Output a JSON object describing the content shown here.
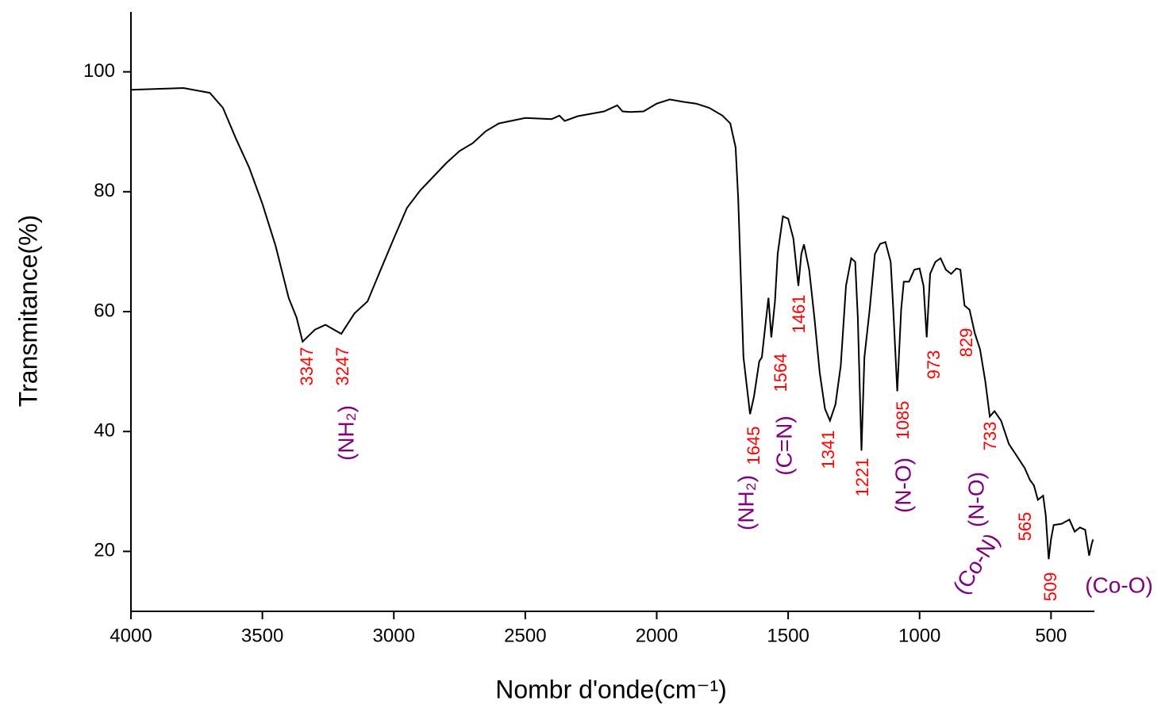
{
  "chart_data": {
    "type": "line",
    "x_label": "Nombr d'onde(cm⁻¹)",
    "y_label": "Transmitance(%)",
    "xlim": [
      4000,
      335
    ],
    "ylim": [
      10,
      110
    ],
    "xticks": [
      4000,
      3500,
      3000,
      2500,
      2000,
      1500,
      1000,
      500
    ],
    "yticks": [
      20,
      40,
      60,
      80,
      100
    ],
    "x": [
      4000,
      3800,
      3700,
      3650,
      3600,
      3550,
      3500,
      3450,
      3400,
      3370,
      3347,
      3300,
      3260,
      3200,
      3150,
      3100,
      3050,
      3000,
      2950,
      2900,
      2800,
      2750,
      2700,
      2650,
      2600,
      2500,
      2400,
      2370,
      2350,
      2300,
      2200,
      2150,
      2130,
      2100,
      2050,
      2000,
      1950,
      1900,
      1850,
      1800,
      1750,
      1720,
      1700,
      1690,
      1680,
      1670,
      1645,
      1630,
      1610,
      1600,
      1590,
      1575,
      1564,
      1550,
      1540,
      1520,
      1500,
      1480,
      1461,
      1450,
      1440,
      1420,
      1400,
      1380,
      1360,
      1341,
      1320,
      1300,
      1280,
      1260,
      1245,
      1235,
      1221,
      1210,
      1190,
      1170,
      1150,
      1130,
      1110,
      1100,
      1085,
      1070,
      1060,
      1040,
      1020,
      1000,
      985,
      973,
      960,
      940,
      920,
      900,
      880,
      860,
      845,
      829,
      810,
      790,
      770,
      750,
      733,
      715,
      690,
      660,
      630,
      600,
      580,
      565,
      550,
      530,
      520,
      509,
      500,
      490,
      460,
      430,
      410,
      390,
      370,
      355,
      345,
      340
    ],
    "series": [
      {
        "color": "#000000",
        "values": [
          97,
          97.3,
          96.5,
          94,
          88.8,
          84,
          78,
          71,
          62.3,
          59,
          55,
          57,
          57.8,
          56.3,
          59.7,
          61.7,
          67,
          72.2,
          77.3,
          80.2,
          84.8,
          86.8,
          88.1,
          90.1,
          91.4,
          92.3,
          92.1,
          92.7,
          91.8,
          92.6,
          93.4,
          94.4,
          93.4,
          93.3,
          93.4,
          94.7,
          95.4,
          95,
          94.7,
          94,
          92.7,
          91.4,
          87.4,
          78.8,
          65.6,
          52.4,
          42.9,
          45.8,
          51.7,
          52.4,
          56.4,
          62.3,
          55.7,
          61.7,
          69.6,
          75.9,
          75.5,
          72.2,
          64.3,
          69.6,
          71.2,
          67,
          59,
          49.8,
          43.8,
          41.8,
          44.5,
          51,
          64.3,
          68.9,
          68.3,
          59,
          36.8,
          52.4,
          60.3,
          69.6,
          71.3,
          71.6,
          68.3,
          60.3,
          46.7,
          60.3,
          65,
          65,
          67,
          67.2,
          64.3,
          55.7,
          66.3,
          68.3,
          68.9,
          67,
          66.3,
          67.2,
          67,
          61,
          60.3,
          56.4,
          53.7,
          48.4,
          42.5,
          43.4,
          41.8,
          37.9,
          35.9,
          33.9,
          31.9,
          31,
          28.6,
          29.3,
          26,
          18.7,
          22,
          24.4,
          24.6,
          25.3,
          23.3,
          24,
          23.6,
          19.3,
          21.3,
          22
        ]
      }
    ],
    "annotations": [
      {
        "text": "3347",
        "color": "#ff0000"
      },
      {
        "text": "3247",
        "color": "#ff0000"
      },
      {
        "text": "1645",
        "color": "#ff0000"
      },
      {
        "text": "1564",
        "color": "#ff0000"
      },
      {
        "text": "1461",
        "color": "#ff0000"
      },
      {
        "text": "1341",
        "color": "#ff0000"
      },
      {
        "text": "1221",
        "color": "#ff0000"
      },
      {
        "text": "1085",
        "color": "#ff0000"
      },
      {
        "text": "973",
        "color": "#ff0000"
      },
      {
        "text": "829",
        "color": "#ff0000"
      },
      {
        "text": "733",
        "color": "#ff0000"
      },
      {
        "text": "565",
        "color": "#ff0000"
      },
      {
        "text": "509",
        "color": "#ff0000"
      },
      {
        "text": "(NH₂)",
        "color": "#800080"
      },
      {
        "text": "(NH₂)",
        "color": "#800080"
      },
      {
        "text": "(C=N)",
        "color": "#800080"
      },
      {
        "text": "(N-O)",
        "color": "#800080"
      },
      {
        "text": "(N-O)",
        "color": "#800080"
      },
      {
        "text": "(Co-N)",
        "color": "#800080"
      },
      {
        "text": "(Co-O)",
        "color": "#800080"
      }
    ]
  }
}
